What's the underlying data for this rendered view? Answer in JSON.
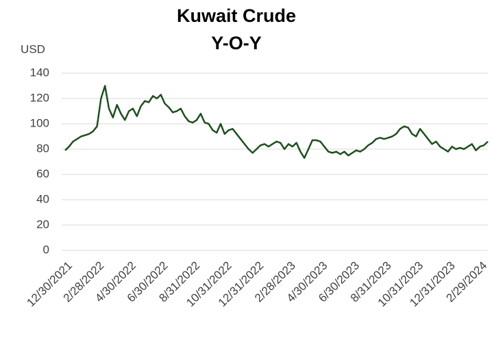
{
  "chart_data": {
    "type": "line",
    "title": "Kuwait Crude",
    "subtitle": "Y-O-Y",
    "ylabel": "USD",
    "categories": [
      "12/30/2021",
      null,
      null,
      null,
      null,
      null,
      null,
      null,
      "2/28/2022",
      null,
      null,
      null,
      null,
      null,
      null,
      null,
      "4/30/2022",
      null,
      null,
      null,
      null,
      null,
      null,
      null,
      "6/30/2022",
      null,
      null,
      null,
      null,
      null,
      null,
      null,
      "8/31/2022",
      null,
      null,
      null,
      null,
      null,
      null,
      null,
      "10/31/2022",
      null,
      null,
      null,
      null,
      null,
      null,
      null,
      "12/31/2022",
      null,
      null,
      null,
      null,
      null,
      null,
      null,
      "2/28/2023",
      null,
      null,
      null,
      null,
      null,
      null,
      null,
      "4/30/2023",
      null,
      null,
      null,
      null,
      null,
      null,
      null,
      "6/30/2023",
      null,
      null,
      null,
      null,
      null,
      null,
      null,
      "8/31/2023",
      null,
      null,
      null,
      null,
      null,
      null,
      null,
      "10/31/2023",
      null,
      null,
      null,
      null,
      null,
      null,
      null,
      "12/31/2023",
      null,
      null,
      null,
      null,
      null,
      null,
      null,
      "2/29/2024",
      null,
      null
    ],
    "series": [
      {
        "name": "Kuwait Crude",
        "color": "#1f4e1f",
        "values": [
          79,
          82,
          86,
          88,
          90,
          91,
          92,
          94,
          98,
          120,
          130,
          112,
          105,
          115,
          108,
          103,
          110,
          112,
          106,
          114,
          118,
          117,
          122,
          120,
          123,
          116,
          113,
          109,
          110,
          112,
          106,
          102,
          101,
          103,
          108,
          101,
          100,
          95,
          93,
          100,
          92,
          95,
          96,
          92,
          88,
          84,
          80,
          77,
          80,
          83,
          84,
          82,
          84,
          86,
          85,
          80,
          84,
          82,
          85,
          78,
          73,
          80,
          87,
          87,
          86,
          82,
          78,
          77,
          78,
          76,
          78,
          75,
          77,
          79,
          78,
          80,
          83,
          85,
          88,
          89,
          88,
          89,
          90,
          92,
          96,
          98,
          97,
          92,
          90,
          96,
          92,
          88,
          84,
          86,
          82,
          80,
          78,
          82,
          80,
          81,
          80,
          82,
          84,
          79,
          82,
          83,
          86
        ]
      }
    ],
    "ylim": [
      0,
      140
    ],
    "yticks": [
      0,
      20,
      40,
      60,
      80,
      100,
      120,
      140
    ],
    "grid": true
  }
}
